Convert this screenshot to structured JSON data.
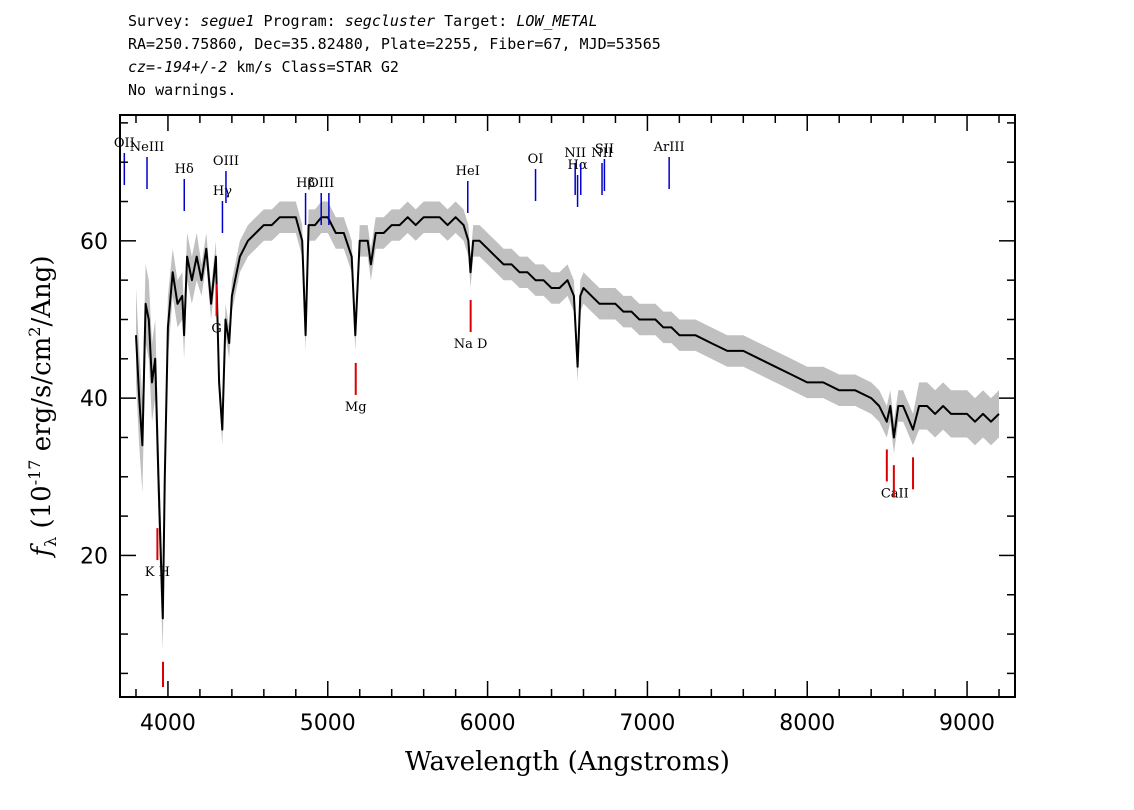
{
  "header": {
    "line1": [
      {
        "text": "Survey: ",
        "italic": false
      },
      {
        "text": "segue1",
        "italic": true
      },
      {
        "text": " Program: ",
        "italic": false
      },
      {
        "text": "segcluster",
        "italic": true
      },
      {
        "text": " Target: ",
        "italic": false
      },
      {
        "text": "LOW_METAL",
        "italic": true
      }
    ],
    "line2": "RA=250.75860, Dec=35.82480, Plate=2255, Fiber=67, MJD=53565",
    "line3": [
      {
        "text": "cz=-194+/-2",
        "italic": true
      },
      {
        "text": " km/s Class=STAR G2",
        "italic": false
      }
    ],
    "line4": "No warnings."
  },
  "chart_data": {
    "type": "line",
    "title": "",
    "xlabel": "Wavelength (Angstroms)",
    "ylabel": "f_λ (10^-17 erg/s/cm^2/Ang)",
    "xlim": [
      3700,
      9300
    ],
    "ylim": [
      2,
      76
    ],
    "x_ticks": [
      4000,
      5000,
      6000,
      7000,
      8000,
      9000
    ],
    "y_ticks": [
      20,
      40,
      60
    ],
    "grid": false,
    "colors": {
      "flux": "#000000",
      "error_band": "#c0c0c0",
      "emission": "#0000cc",
      "absorption": "#dd0000"
    },
    "series": [
      {
        "x": [
          3800,
          3820,
          3840,
          3860,
          3880,
          3900,
          3920,
          3940,
          3955,
          3968,
          3980,
          4000,
          4030,
          4060,
          4090,
          4101,
          4120,
          4150,
          4180,
          4210,
          4240,
          4270,
          4300,
          4320,
          4340,
          4360,
          4383,
          4400,
          4450,
          4500,
          4550,
          4600,
          4650,
          4700,
          4750,
          4800,
          4840,
          4861,
          4880,
          4920,
          4960,
          5000,
          5050,
          5100,
          5150,
          5172,
          5200,
          5250,
          5270,
          5300,
          5350,
          5400,
          5450,
          5500,
          5550,
          5600,
          5650,
          5700,
          5750,
          5800,
          5850,
          5880,
          5893,
          5910,
          5950,
          6000,
          6050,
          6100,
          6150,
          6200,
          6250,
          6300,
          6350,
          6400,
          6450,
          6500,
          6540,
          6563,
          6580,
          6600,
          6650,
          6700,
          6750,
          6800,
          6850,
          6900,
          6950,
          7000,
          7050,
          7100,
          7150,
          7200,
          7250,
          7300,
          7400,
          7500,
          7600,
          7700,
          7800,
          7900,
          8000,
          8100,
          8200,
          8300,
          8400,
          8450,
          8498,
          8520,
          8542,
          8570,
          8600,
          8662,
          8700,
          8750,
          8800,
          8850,
          8900,
          8950,
          9000,
          9050,
          9100,
          9150,
          9200
        ],
        "y": [
          48,
          40,
          34,
          52,
          50,
          42,
          45,
          30,
          20,
          12,
          30,
          49,
          56,
          52,
          53,
          48,
          58,
          55,
          58,
          55,
          59,
          52,
          58,
          42,
          36,
          50,
          47,
          53,
          58,
          60,
          61,
          62,
          62,
          63,
          63,
          63,
          60,
          48,
          62,
          62,
          63,
          63,
          61,
          61,
          58,
          48,
          60,
          60,
          57,
          61,
          61,
          62,
          62,
          63,
          62,
          63,
          63,
          63,
          62,
          63,
          62,
          60,
          56,
          60,
          60,
          59,
          58,
          57,
          57,
          56,
          56,
          55,
          55,
          54,
          54,
          55,
          53,
          44,
          53,
          54,
          53,
          52,
          52,
          52,
          51,
          51,
          50,
          50,
          50,
          49,
          49,
          48,
          48,
          48,
          47,
          46,
          46,
          45,
          44,
          43,
          42,
          42,
          41,
          41,
          40,
          39,
          37,
          39,
          35,
          39,
          39,
          36,
          39,
          39,
          38,
          39,
          38,
          38,
          38,
          37,
          38,
          37,
          38
        ],
        "err": [
          6,
          6,
          6,
          5,
          5,
          5,
          5,
          5,
          5,
          4,
          4,
          4,
          3,
          3,
          3,
          3,
          3,
          3,
          3,
          2,
          2,
          2,
          2,
          2,
          2,
          2,
          2,
          2,
          2,
          2,
          2,
          2,
          2,
          2,
          2,
          2,
          2,
          2,
          2,
          2,
          2,
          2,
          2,
          2,
          2,
          2,
          2,
          2,
          2,
          2,
          2,
          2,
          2,
          2,
          2,
          2,
          2,
          2,
          2,
          2,
          2,
          2,
          2,
          2,
          2,
          2,
          2,
          2,
          2,
          2,
          2,
          2,
          2,
          2,
          2,
          2,
          2,
          2,
          2,
          2,
          2,
          2,
          2,
          2,
          2,
          2,
          2,
          2,
          2,
          2,
          2,
          2,
          2,
          2,
          2,
          2,
          2,
          2,
          2,
          2,
          2,
          2,
          2,
          2,
          2,
          2,
          2,
          2,
          2,
          2,
          2,
          2,
          3,
          3,
          3,
          3,
          3,
          3,
          3,
          3,
          3,
          3,
          3
        ]
      }
    ],
    "emission_lines": [
      {
        "label": "OII",
        "wave": 3727
      },
      {
        "label": "NeIII",
        "wave": 3869
      },
      {
        "label": "Hδ",
        "wave": 4102
      },
      {
        "label": "Hγ",
        "wave": 4341
      },
      {
        "label": "OIII",
        "wave": 4363
      },
      {
        "label": "Hβ",
        "wave": 4861
      },
      {
        "label": "OIII",
        "wave": 4959
      },
      {
        "label": "",
        "wave": 5007
      },
      {
        "label": "HeI",
        "wave": 5876
      },
      {
        "label": "OI",
        "wave": 6300
      },
      {
        "label": "NII",
        "wave": 6548
      },
      {
        "label": "Hα",
        "wave": 6563
      },
      {
        "label": "",
        "wave": 6583
      },
      {
        "label": "NII",
        "wave": 6716
      },
      {
        "label": "SII",
        "wave": 6731
      },
      {
        "label": "ArIII",
        "wave": 7136
      }
    ],
    "absorption_lines": [
      {
        "label": "K H",
        "wave": 3934
      },
      {
        "label": "",
        "wave": 3969
      },
      {
        "label": "G",
        "wave": 4304
      },
      {
        "label": "Mg",
        "wave": 5175
      },
      {
        "label": "Na D",
        "wave": 5894
      },
      {
        "label": "CaII",
        "wave": 8498
      },
      {
        "label": "",
        "wave": 8542
      },
      {
        "label": "",
        "wave": 8662
      }
    ]
  }
}
